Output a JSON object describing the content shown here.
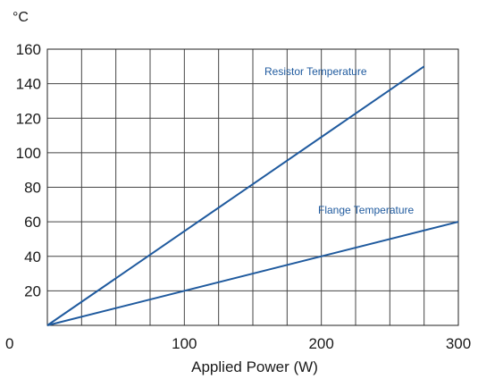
{
  "chart_data": {
    "type": "line",
    "ylabel": "°C",
    "xlabel": "Applied Power (W)",
    "xlim": [
      0,
      300
    ],
    "ylim": [
      0,
      160
    ],
    "grid": true,
    "x_tick_labels": [
      {
        "value": 0,
        "label": "0"
      },
      {
        "value": 100,
        "label": "100"
      },
      {
        "value": 200,
        "label": "200"
      },
      {
        "value": 300,
        "label": "300"
      }
    ],
    "y_tick_labels": [
      {
        "value": 20,
        "label": "20"
      },
      {
        "value": 40,
        "label": "40"
      },
      {
        "value": 60,
        "label": "60"
      },
      {
        "value": 80,
        "label": "80"
      },
      {
        "value": 100,
        "label": "100"
      },
      {
        "value": 120,
        "label": "120"
      },
      {
        "value": 140,
        "label": "140"
      },
      {
        "value": 160,
        "label": "160"
      }
    ],
    "x_grid": [
      0,
      25,
      50,
      75,
      100,
      125,
      150,
      175,
      200,
      225,
      250,
      275,
      300
    ],
    "y_grid": [
      0,
      20,
      40,
      60,
      80,
      100,
      120,
      140,
      160
    ],
    "series": [
      {
        "name": "Resistor Temperature",
        "x": [
          0,
          275
        ],
        "y": [
          0,
          150
        ],
        "color": "#1f5a9e"
      },
      {
        "name": "Flange Temperature",
        "x": [
          0,
          300
        ],
        "y": [
          0,
          60
        ],
        "color": "#1f5a9e"
      }
    ]
  }
}
